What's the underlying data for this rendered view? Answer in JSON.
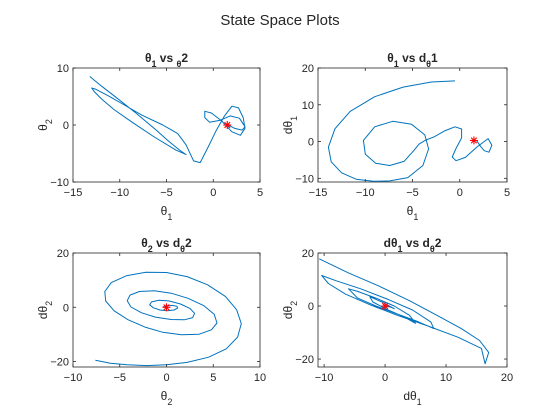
{
  "figure": {
    "title": "State Space Plots",
    "trajectory_color": "#0072bd",
    "marker_color": "#ff0000",
    "marker_symbol": "*"
  },
  "chart_data": [
    {
      "type": "line",
      "title_parts": [
        "θ",
        "1",
        " vs ",
        "θ",
        "2"
      ],
      "xlabel_parts": [
        "θ",
        "1"
      ],
      "ylabel_parts": [
        "θ",
        "2"
      ],
      "xlim": [
        -15,
        5
      ],
      "ylim": [
        -10,
        10
      ],
      "xticks": [
        -15,
        -10,
        -5,
        0,
        5
      ],
      "yticks": [
        -10,
        0,
        10
      ],
      "xtick_labels": [
        "−15",
        "−10",
        "−5",
        "0",
        "5"
      ],
      "ytick_labels": [
        "−10",
        "0",
        "10"
      ],
      "grid": false,
      "series": [
        {
          "x": [
            -13.2,
            -12.0,
            -10.2,
            -8.2,
            -6.1,
            -4.8,
            -3.6,
            -2.9,
            -4.0,
            -6.3,
            -8.6,
            -10.6,
            -11.9,
            -12.7,
            -13.0,
            -12.6,
            -11.3,
            -9.6,
            -7.6,
            -5.4,
            -3.8,
            -2.9,
            -2.1,
            -1.4,
            -0.5,
            0.3,
            1.2,
            2.0,
            2.7,
            3.2,
            3.4,
            2.9,
            2.0,
            0.9,
            -0.2,
            -0.9,
            -0.9,
            -0.4,
            0.7,
            1.8,
            2.8,
            3.4,
            3.1,
            2.3,
            1.6
          ],
          "y": [
            8.5,
            6.9,
            4.6,
            2.0,
            -0.9,
            -2.8,
            -4.4,
            -5.2,
            -4.4,
            -2.1,
            0.4,
            2.7,
            4.5,
            5.8,
            6.5,
            6.3,
            5.2,
            3.6,
            1.7,
            0.0,
            -1.5,
            -3.5,
            -6.3,
            -6.6,
            -3.7,
            -1.0,
            1.6,
            3.3,
            3.0,
            1.3,
            -0.6,
            -1.8,
            -1.2,
            0.7,
            2.1,
            2.4,
            1.3,
            0.5,
            0.8,
            1.6,
            1.2,
            -0.3,
            -0.9,
            -0.6,
            0.0
          ]
        }
      ],
      "final_point": {
        "x": 1.5,
        "y": 0
      }
    },
    {
      "type": "line",
      "title_parts": [
        "θ",
        "1",
        " vs d",
        "θ",
        "1"
      ],
      "xlabel_parts": [
        "θ",
        "1"
      ],
      "ylabel_parts": [
        "dθ",
        "1"
      ],
      "xlim": [
        -15,
        5
      ],
      "ylim": [
        -11,
        20
      ],
      "xticks": [
        -15,
        -10,
        -5,
        0,
        5
      ],
      "yticks": [
        -10,
        0,
        10,
        20
      ],
      "xtick_labels": [
        "−15",
        "−10",
        "−5",
        "0",
        "5"
      ],
      "ytick_labels": [
        "−10",
        "0",
        "10",
        "20"
      ],
      "grid": false,
      "series": [
        {
          "x": [
            -0.5,
            -3.0,
            -6.0,
            -9.0,
            -11.6,
            -13.2,
            -13.9,
            -13.6,
            -12.5,
            -10.9,
            -9.1,
            -7.4,
            -5.5,
            -3.9,
            -3.3,
            -3.7,
            -5.1,
            -7.1,
            -9.0,
            -10.2,
            -10.0,
            -8.9,
            -7.4,
            -5.9,
            -4.9,
            -4.3,
            -3.6,
            -2.7,
            -1.6,
            -0.5,
            0.2,
            0.2,
            -0.4,
            -0.8,
            -0.4,
            0.6,
            1.8,
            3.0,
            3.4,
            3.1,
            2.6,
            2.2,
            1.8,
            1.5
          ],
          "y": [
            16.5,
            16.2,
            14.8,
            12.2,
            8.2,
            3.5,
            -1.5,
            -5.5,
            -8.5,
            -10.3,
            -10.8,
            -10.7,
            -9.8,
            -6.5,
            -2.0,
            1.8,
            4.7,
            5.5,
            4.0,
            0.3,
            -3.4,
            -5.9,
            -6.5,
            -5.4,
            -2.6,
            -0.7,
            0.4,
            1.3,
            2.9,
            4.0,
            3.4,
            1.0,
            -1.9,
            -4.2,
            -5.2,
            -4.3,
            -1.5,
            0.8,
            -1.0,
            -2.9,
            -2.5,
            -1.3,
            0.2,
            0.3
          ]
        }
      ],
      "final_point": {
        "x": 1.5,
        "y": 0.3
      }
    },
    {
      "type": "line",
      "title_parts": [
        "θ",
        "2",
        " vs d",
        "θ",
        "2"
      ],
      "xlabel_parts": [
        "θ",
        "2"
      ],
      "ylabel_parts": [
        "dθ",
        "2"
      ],
      "xlim": [
        -10,
        10
      ],
      "ylim": [
        -22,
        20
      ],
      "xticks": [
        -10,
        -5,
        0,
        5,
        10
      ],
      "yticks": [
        -20,
        0,
        20
      ],
      "xtick_labels": [
        "−10",
        "−5",
        "0",
        "5",
        "10"
      ],
      "ytick_labels": [
        "−20",
        "0",
        "20"
      ],
      "grid": false,
      "series": [
        {
          "x": [
            -7.6,
            -6.0,
            -4.2,
            -2.1,
            0.0,
            2.2,
            4.5,
            6.4,
            7.6,
            8.0,
            7.5,
            6.3,
            4.4,
            2.2,
            0.0,
            -2.2,
            -4.3,
            -5.9,
            -6.6,
            -6.5,
            -5.6,
            -4.1,
            -2.3,
            -0.4,
            1.6,
            3.5,
            4.8,
            5.4,
            5.1,
            4.0,
            2.3,
            0.5,
            -1.3,
            -2.9,
            -3.9,
            -4.2,
            -3.8,
            -2.7,
            -1.2,
            0.5,
            1.9,
            2.8,
            3.0,
            2.5,
            1.5,
            0.3,
            -0.8,
            -1.6,
            -1.8,
            -1.4,
            -0.7,
            0.1,
            0.8,
            1.2,
            1.1,
            0.6,
            0.0,
            -0.4
          ],
          "y": [
            -19.5,
            -20.6,
            -21.2,
            -21.5,
            -21.2,
            -20.3,
            -18.4,
            -15.3,
            -11.0,
            -6.0,
            -0.9,
            4.0,
            8.3,
            11.3,
            12.8,
            12.9,
            11.6,
            9.1,
            5.8,
            2.3,
            -1.3,
            -4.6,
            -7.3,
            -9.2,
            -10.1,
            -9.9,
            -8.3,
            -5.8,
            -2.6,
            0.6,
            3.3,
            5.2,
            6.1,
            5.8,
            4.5,
            2.4,
            0.1,
            -2.0,
            -3.6,
            -4.5,
            -4.6,
            -3.8,
            -2.2,
            -0.4,
            1.2,
            2.3,
            2.6,
            2.0,
            0.9,
            -0.2,
            -1.0,
            -1.3,
            -1.0,
            -0.3,
            0.4,
            0.7,
            0.5,
            0.1
          ]
        }
      ],
      "final_point": {
        "x": 0,
        "y": 0
      }
    },
    {
      "type": "line",
      "title_parts": [
        "dθ",
        "1",
        " vs d",
        "θ",
        "2"
      ],
      "xlabel_parts": [
        "dθ",
        "1"
      ],
      "ylabel_parts": [
        "dθ",
        "2"
      ],
      "xlim": [
        -11,
        20
      ],
      "ylim": [
        -23,
        20
      ],
      "xticks": [
        -10,
        0,
        10,
        20
      ],
      "yticks": [
        -20,
        0,
        20
      ],
      "xtick_labels": [
        "−10",
        "0",
        "10",
        "20"
      ],
      "ytick_labels": [
        "−20",
        "0",
        "20"
      ],
      "grid": false,
      "series": [
        {
          "x": [
            -10.8,
            -6.0,
            -1.0,
            4.0,
            8.5,
            12.5,
            15.5,
            17.0,
            16.4,
            15.8,
            12.0,
            7.0,
            2.0,
            -2.5,
            -6.5,
            -9.3,
            -10.4,
            -8.0,
            -4.0,
            0.5,
            4.5,
            7.5,
            8.0,
            5.5,
            2.0,
            -1.5,
            -4.5,
            -6.0,
            -4.5,
            -1.5,
            1.5,
            4.0,
            5.0,
            3.0,
            0.5,
            -2.0,
            -2.5,
            -0.5,
            1.5,
            1.0,
            0.0
          ],
          "y": [
            17.8,
            12.5,
            7.5,
            2.0,
            -3.5,
            -8.5,
            -13.0,
            -17.5,
            -21.8,
            -16.0,
            -11.8,
            -7.5,
            -3.5,
            0.5,
            4.5,
            8.5,
            11.5,
            9.5,
            6.5,
            2.5,
            -1.5,
            -6.0,
            -8.5,
            -6.0,
            -3.0,
            0.0,
            3.0,
            6.5,
            5.5,
            3.0,
            0.0,
            -3.5,
            -6.5,
            -4.0,
            -1.5,
            1.5,
            3.5,
            1.5,
            -1.0,
            -0.5,
            0.0
          ]
        }
      ],
      "final_point": {
        "x": 0,
        "y": 0
      }
    }
  ]
}
